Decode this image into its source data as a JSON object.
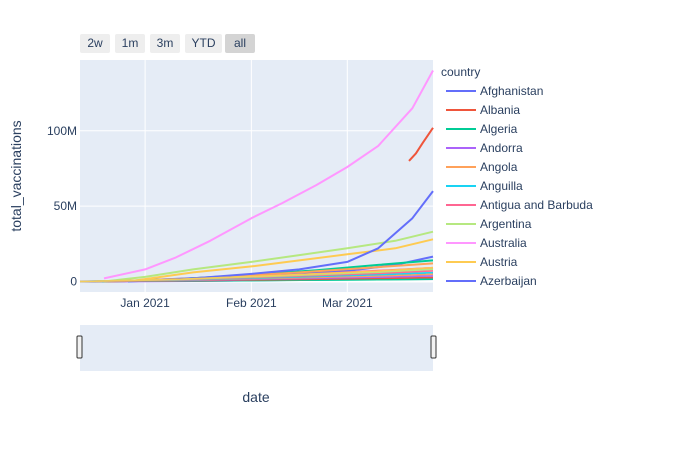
{
  "range_selector": {
    "buttons": [
      {
        "label": "2w",
        "active": false
      },
      {
        "label": "1m",
        "active": false
      },
      {
        "label": "3m",
        "active": false
      },
      {
        "label": "YTD",
        "active": false
      },
      {
        "label": "all",
        "active": true
      }
    ]
  },
  "chart_data": {
    "type": "line",
    "xlabel": "date",
    "ylabel": "total_vaccinations",
    "x_ticks": [
      "Jan 2021",
      "Feb 2021",
      "Mar 2021"
    ],
    "y_ticks": [
      {
        "value": 0,
        "label": "0"
      },
      {
        "value": 50000000,
        "label": "50M"
      },
      {
        "value": 100000000,
        "label": "100M"
      }
    ],
    "xlim": [
      "2020-12-13",
      "2021-03-26"
    ],
    "ylim": [
      -7000000,
      147000000
    ],
    "grid": true,
    "legend_title": "country",
    "legend_position": "right",
    "series": [
      {
        "name": "Afghanistan",
        "color": "#636efa",
        "dash": false,
        "points": [
          [
            "2020-12-13",
            0
          ],
          [
            "2020-12-28",
            500000
          ],
          [
            "2021-01-15",
            2200000
          ],
          [
            "2021-02-01",
            3500000
          ],
          [
            "2021-02-15",
            5000000
          ],
          [
            "2021-03-01",
            7000000
          ],
          [
            "2021-03-15",
            11000000
          ],
          [
            "2021-03-26",
            16500000
          ]
        ]
      },
      {
        "name": "Albania",
        "color": "#EF553B",
        "dash": false,
        "points": [
          [
            "2021-03-19",
            80000000
          ],
          [
            "2021-03-21",
            85000000
          ],
          [
            "2021-03-23",
            92000000
          ],
          [
            "2021-03-26",
            102000000
          ]
        ]
      },
      {
        "name": "Algeria",
        "color": "#00cc96",
        "dash": false,
        "points": [
          [
            "2020-12-20",
            0
          ],
          [
            "2021-01-10",
            1500000
          ],
          [
            "2021-02-01",
            4500000
          ],
          [
            "2021-02-20",
            7500000
          ],
          [
            "2021-03-10",
            11000000
          ],
          [
            "2021-03-26",
            14000000
          ]
        ]
      },
      {
        "name": "Andorra",
        "color": "#ab63fa",
        "dash": false,
        "points": [
          [
            "2020-12-20",
            0
          ],
          [
            "2021-01-15",
            300000
          ],
          [
            "2021-02-15",
            1000000
          ],
          [
            "2021-03-26",
            2000000
          ]
        ]
      },
      {
        "name": "Angola",
        "color": "#FFA15A",
        "dash": false,
        "points": [
          [
            "2020-12-20",
            0
          ],
          [
            "2021-01-15",
            2000000
          ],
          [
            "2021-02-15",
            6000000
          ],
          [
            "2021-03-26",
            12000000
          ]
        ]
      },
      {
        "name": "Anguilla",
        "color": "#19d3f3",
        "dash": true,
        "points": [
          [
            "2020-12-15",
            0
          ],
          [
            "2021-01-15",
            800000
          ],
          [
            "2021-02-15",
            2500000
          ],
          [
            "2021-03-26",
            5000000
          ]
        ]
      },
      {
        "name": "Antigua and Barbuda",
        "color": "#FF6692",
        "dash": false,
        "points": [
          [
            "2020-12-20",
            0
          ],
          [
            "2021-01-20",
            1500000
          ],
          [
            "2021-02-20",
            5000000
          ],
          [
            "2021-03-26",
            9000000
          ]
        ]
      },
      {
        "name": "Argentina",
        "color": "#B6E880",
        "dash": false,
        "points": [
          [
            "2020-12-20",
            0
          ],
          [
            "2021-01-01",
            3000000
          ],
          [
            "2021-01-15",
            8000000
          ],
          [
            "2021-02-01",
            13000000
          ],
          [
            "2021-02-15",
            17500000
          ],
          [
            "2021-03-01",
            22000000
          ],
          [
            "2021-03-15",
            27000000
          ],
          [
            "2021-03-26",
            33000000
          ]
        ]
      },
      {
        "name": "Australia",
        "color": "#FF97FF",
        "dash": false,
        "points": [
          [
            "2020-12-20",
            2000000
          ],
          [
            "2021-01-01",
            8000000
          ],
          [
            "2021-01-10",
            16000000
          ],
          [
            "2021-01-20",
            27000000
          ],
          [
            "2021-02-01",
            42000000
          ],
          [
            "2021-02-10",
            52000000
          ],
          [
            "2021-02-20",
            64000000
          ],
          [
            "2021-03-01",
            76000000
          ],
          [
            "2021-03-10",
            90000000
          ],
          [
            "2021-03-20",
            115000000
          ],
          [
            "2021-03-26",
            140000000
          ]
        ]
      },
      {
        "name": "Austria",
        "color": "#FECB52",
        "dash": false,
        "points": [
          [
            "2020-12-27",
            0
          ],
          [
            "2021-01-15",
            6000000
          ],
          [
            "2021-02-01",
            10000000
          ],
          [
            "2021-02-15",
            14000000
          ],
          [
            "2021-03-01",
            18000000
          ],
          [
            "2021-03-15",
            22000000
          ],
          [
            "2021-03-26",
            28000000
          ]
        ]
      },
      {
        "name": "Azerbaijan",
        "color": "#636efa",
        "dash": false,
        "points": [
          [
            "2020-12-27",
            0
          ],
          [
            "2021-01-15",
            2000000
          ],
          [
            "2021-02-01",
            5000000
          ],
          [
            "2021-02-15",
            8000000
          ],
          [
            "2021-03-01",
            13000000
          ],
          [
            "2021-03-10",
            22000000
          ],
          [
            "2021-03-20",
            42000000
          ],
          [
            "2021-03-26",
            60000000
          ]
        ]
      }
    ]
  }
}
